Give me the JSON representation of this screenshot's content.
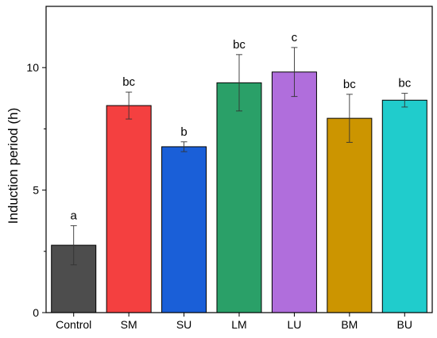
{
  "chart_data": {
    "type": "bar",
    "title": "",
    "xlabel": "",
    "ylabel": "Induction period (h)",
    "ylim": [
      0,
      12.5
    ],
    "yticks": [
      0,
      5,
      10
    ],
    "grid": false,
    "categories": [
      "Control",
      "SM",
      "SU",
      "LM",
      "LU",
      "BM",
      "BU"
    ],
    "values": [
      2.75,
      8.45,
      6.77,
      9.38,
      9.82,
      7.93,
      8.67
    ],
    "errors": [
      0.8,
      0.55,
      0.2,
      1.15,
      1.0,
      0.98,
      0.28
    ],
    "significance": [
      "a",
      "bc",
      "b",
      "bc",
      "c",
      "bc",
      "bc"
    ],
    "colors": [
      "#4d4d4d",
      "#f44040",
      "#1a5fd8",
      "#2aa068",
      "#b06edc",
      "#cc9500",
      "#20cccc"
    ]
  }
}
